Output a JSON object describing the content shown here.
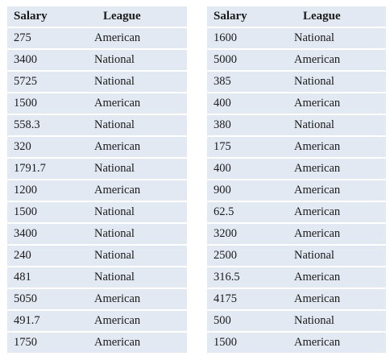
{
  "columns": {
    "salary": "Salary",
    "league": "League"
  },
  "left_table": [
    {
      "salary": "275",
      "league": "American"
    },
    {
      "salary": "3400",
      "league": "National"
    },
    {
      "salary": "5725",
      "league": "National"
    },
    {
      "salary": "1500",
      "league": "American"
    },
    {
      "salary": "558.3",
      "league": "National"
    },
    {
      "salary": "320",
      "league": "American"
    },
    {
      "salary": "1791.7",
      "league": "National"
    },
    {
      "salary": "1200",
      "league": "American"
    },
    {
      "salary": "1500",
      "league": "National"
    },
    {
      "salary": "3400",
      "league": "National"
    },
    {
      "salary": "240",
      "league": "National"
    },
    {
      "salary": "481",
      "league": "National"
    },
    {
      "salary": "5050",
      "league": "American"
    },
    {
      "salary": "491.7",
      "league": "American"
    },
    {
      "salary": "1750",
      "league": "American"
    }
  ],
  "right_table": [
    {
      "salary": "1600",
      "league": "National"
    },
    {
      "salary": "5000",
      "league": "American"
    },
    {
      "salary": "385",
      "league": "National"
    },
    {
      "salary": "400",
      "league": "American"
    },
    {
      "salary": "380",
      "league": "National"
    },
    {
      "salary": "175",
      "league": "American"
    },
    {
      "salary": "400",
      "league": "American"
    },
    {
      "salary": "900",
      "league": "American"
    },
    {
      "salary": "62.5",
      "league": "American"
    },
    {
      "salary": "3200",
      "league": "American"
    },
    {
      "salary": "2500",
      "league": "National"
    },
    {
      "salary": "316.5",
      "league": "American"
    },
    {
      "salary": "4175",
      "league": "American"
    },
    {
      "salary": "500",
      "league": "National"
    },
    {
      "salary": "1500",
      "league": "American"
    }
  ],
  "colors": {
    "row_background": "#e3e9f3",
    "text": "#1a1a1a"
  }
}
